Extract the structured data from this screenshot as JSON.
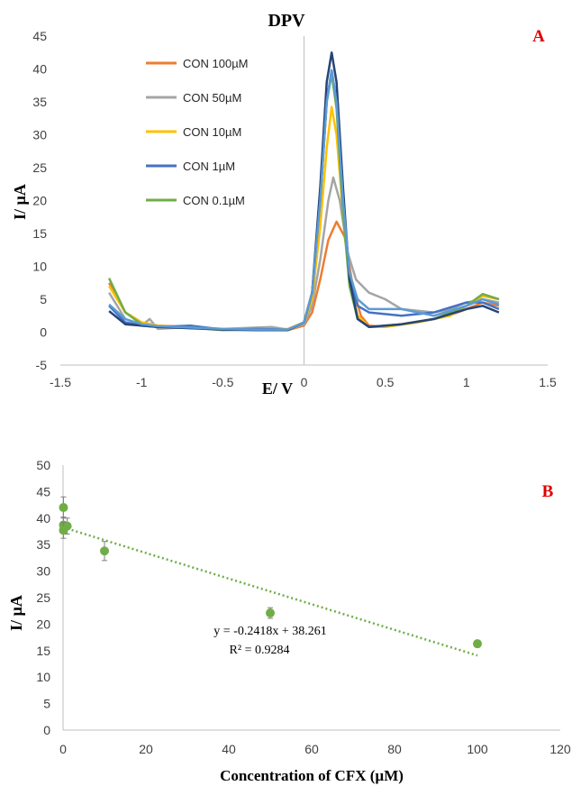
{
  "chart_data": [
    {
      "type": "line",
      "title": "DPV",
      "panel_label": "A",
      "xlabel": "E/ V",
      "ylabel": "I/ µA",
      "xlim": [
        -1.5,
        1.5
      ],
      "ylim": [
        -5,
        45
      ],
      "x_ticks": [
        "-1.5",
        "-1",
        "-0.5",
        "0",
        "0.5",
        "1",
        "1.5"
      ],
      "y_ticks": [
        "-5",
        "0",
        "5",
        "10",
        "15",
        "20",
        "25",
        "30",
        "35",
        "40",
        "45"
      ],
      "grid": false,
      "legend_position": "top-left",
      "series": [
        {
          "name": "CON 100µM",
          "color": "#ED7D31",
          "points": [
            [
              -1.2,
              7.5
            ],
            [
              -1.1,
              3.0
            ],
            [
              -1.0,
              1.5
            ],
            [
              -0.9,
              1.0
            ],
            [
              -0.7,
              0.8
            ],
            [
              -0.5,
              0.4
            ],
            [
              -0.3,
              0.5
            ],
            [
              -0.1,
              0.3
            ],
            [
              0.0,
              1.0
            ],
            [
              0.05,
              3.0
            ],
            [
              0.1,
              8.0
            ],
            [
              0.15,
              14.0
            ],
            [
              0.2,
              16.8
            ],
            [
              0.25,
              14.5
            ],
            [
              0.3,
              7.0
            ],
            [
              0.35,
              2.5
            ],
            [
              0.4,
              1.0
            ],
            [
              0.5,
              0.8
            ],
            [
              0.6,
              1.2
            ],
            [
              0.8,
              2.0
            ],
            [
              0.9,
              2.6
            ],
            [
              1.0,
              3.5
            ],
            [
              1.1,
              4.5
            ],
            [
              1.2,
              4.0
            ]
          ]
        },
        {
          "name": "CON 50µM",
          "color": "#A5A5A5",
          "points": [
            [
              -1.2,
              6.0
            ],
            [
              -1.1,
              2.0
            ],
            [
              -1.0,
              1.0
            ],
            [
              -0.95,
              2.0
            ],
            [
              -0.9,
              0.5
            ],
            [
              -0.7,
              0.8
            ],
            [
              -0.5,
              0.5
            ],
            [
              -0.2,
              0.8
            ],
            [
              -0.1,
              0.4
            ],
            [
              0.0,
              1.2
            ],
            [
              0.05,
              4.0
            ],
            [
              0.1,
              11.0
            ],
            [
              0.15,
              20.0
            ],
            [
              0.18,
              23.5
            ],
            [
              0.22,
              20.0
            ],
            [
              0.27,
              12.0
            ],
            [
              0.32,
              8.0
            ],
            [
              0.4,
              6.0
            ],
            [
              0.5,
              5.0
            ],
            [
              0.6,
              3.5
            ],
            [
              0.8,
              3.0
            ],
            [
              0.9,
              3.5
            ],
            [
              1.0,
              4.5
            ],
            [
              1.1,
              5.0
            ],
            [
              1.2,
              4.5
            ]
          ]
        },
        {
          "name": "CON 10µM",
          "color": "#FFC000",
          "points": [
            [
              -1.2,
              7.0
            ],
            [
              -1.1,
              3.0
            ],
            [
              -1.0,
              1.5
            ],
            [
              -0.9,
              1.0
            ],
            [
              -0.7,
              0.6
            ],
            [
              -0.5,
              0.5
            ],
            [
              -0.3,
              0.3
            ],
            [
              -0.1,
              0.5
            ],
            [
              0.0,
              1.5
            ],
            [
              0.05,
              5.0
            ],
            [
              0.1,
              16.0
            ],
            [
              0.14,
              28.0
            ],
            [
              0.17,
              34.2
            ],
            [
              0.2,
              30.0
            ],
            [
              0.24,
              18.0
            ],
            [
              0.28,
              8.0
            ],
            [
              0.33,
              2.5
            ],
            [
              0.4,
              0.8
            ],
            [
              0.5,
              0.8
            ],
            [
              0.7,
              1.5
            ],
            [
              0.9,
              2.5
            ],
            [
              1.0,
              4.0
            ],
            [
              1.1,
              5.5
            ],
            [
              1.2,
              5.0
            ]
          ]
        },
        {
          "name": "CON 1µM",
          "color": "#4472C4",
          "points": [
            [
              -1.2,
              4.0
            ],
            [
              -1.1,
              1.5
            ],
            [
              -1.0,
              1.0
            ],
            [
              -0.9,
              0.8
            ],
            [
              -0.7,
              1.0
            ],
            [
              -0.5,
              0.4
            ],
            [
              -0.3,
              0.5
            ],
            [
              -0.1,
              0.4
            ],
            [
              0.0,
              1.5
            ],
            [
              0.05,
              6.0
            ],
            [
              0.1,
              20.0
            ],
            [
              0.14,
              35.0
            ],
            [
              0.17,
              39.8
            ],
            [
              0.2,
              35.0
            ],
            [
              0.24,
              20.0
            ],
            [
              0.28,
              8.0
            ],
            [
              0.33,
              4.0
            ],
            [
              0.4,
              3.0
            ],
            [
              0.6,
              2.5
            ],
            [
              0.8,
              3.0
            ],
            [
              1.0,
              4.5
            ],
            [
              1.1,
              4.5
            ],
            [
              1.2,
              3.5
            ]
          ]
        },
        {
          "name": "CON 0.1µM",
          "color": "#70AD47",
          "points": [
            [
              -1.2,
              8.2
            ],
            [
              -1.1,
              3.0
            ],
            [
              -1.0,
              1.2
            ],
            [
              -0.9,
              0.8
            ],
            [
              -0.7,
              0.7
            ],
            [
              -0.5,
              0.3
            ],
            [
              -0.3,
              0.4
            ],
            [
              -0.1,
              0.3
            ],
            [
              0.0,
              1.5
            ],
            [
              0.05,
              6.0
            ],
            [
              0.1,
              20.0
            ],
            [
              0.14,
              35.0
            ],
            [
              0.17,
              39.2
            ],
            [
              0.2,
              34.0
            ],
            [
              0.24,
              18.0
            ],
            [
              0.28,
              7.0
            ],
            [
              0.33,
              2.0
            ],
            [
              0.4,
              0.8
            ],
            [
              0.6,
              1.2
            ],
            [
              0.8,
              2.0
            ],
            [
              1.0,
              4.0
            ],
            [
              1.1,
              5.8
            ],
            [
              1.2,
              5.0
            ]
          ]
        },
        {
          "name": "",
          "color": "#264478",
          "points": [
            [
              -1.2,
              3.2
            ],
            [
              -1.1,
              1.2
            ],
            [
              -0.9,
              0.8
            ],
            [
              -0.7,
              0.6
            ],
            [
              -0.5,
              0.4
            ],
            [
              -0.3,
              0.3
            ],
            [
              -0.1,
              0.3
            ],
            [
              0.0,
              1.5
            ],
            [
              0.05,
              6.0
            ],
            [
              0.1,
              22.0
            ],
            [
              0.14,
              38.0
            ],
            [
              0.17,
              42.5
            ],
            [
              0.2,
              38.0
            ],
            [
              0.24,
              22.0
            ],
            [
              0.28,
              8.0
            ],
            [
              0.33,
              2.0
            ],
            [
              0.4,
              0.8
            ],
            [
              0.6,
              1.2
            ],
            [
              0.8,
              2.0
            ],
            [
              1.0,
              3.5
            ],
            [
              1.1,
              4.0
            ],
            [
              1.2,
              3.0
            ]
          ]
        },
        {
          "name": "",
          "color": "#5B9BD5",
          "points": [
            [
              -1.2,
              4.2
            ],
            [
              -1.1,
              2.0
            ],
            [
              -1.0,
              1.2
            ],
            [
              -0.9,
              0.9
            ],
            [
              -0.7,
              0.7
            ],
            [
              -0.5,
              0.5
            ],
            [
              -0.3,
              0.4
            ],
            [
              -0.1,
              0.4
            ],
            [
              0.0,
              1.5
            ],
            [
              0.05,
              6.0
            ],
            [
              0.1,
              20.0
            ],
            [
              0.14,
              35.0
            ],
            [
              0.17,
              39.8
            ],
            [
              0.2,
              35.0
            ],
            [
              0.24,
              20.0
            ],
            [
              0.28,
              9.0
            ],
            [
              0.33,
              5.0
            ],
            [
              0.4,
              3.5
            ],
            [
              0.6,
              3.5
            ],
            [
              0.8,
              2.5
            ],
            [
              1.0,
              4.0
            ],
            [
              1.1,
              5.0
            ],
            [
              1.2,
              4.2
            ]
          ]
        }
      ]
    },
    {
      "type": "scatter",
      "panel_label": "B",
      "xlabel": "Concentration of CFX (µM)",
      "ylabel": "I/ µA",
      "xlim": [
        0,
        120
      ],
      "ylim": [
        0,
        50
      ],
      "x_ticks": [
        "0",
        "20",
        "40",
        "60",
        "80",
        "100",
        "120"
      ],
      "y_ticks": [
        "0",
        "5",
        "10",
        "15",
        "20",
        "25",
        "30",
        "35",
        "40",
        "45",
        "50"
      ],
      "grid": false,
      "point_color": "#70AD47",
      "points": [
        {
          "x": 0.1,
          "y": 42.0,
          "err": 2.0
        },
        {
          "x": 0.1,
          "y": 38.7,
          "err": 1.5
        },
        {
          "x": 1.0,
          "y": 38.5,
          "err": 1.5
        },
        {
          "x": 0.1,
          "y": 37.7,
          "err": 1.5
        },
        {
          "x": 10,
          "y": 33.8,
          "err": 1.8
        },
        {
          "x": 50,
          "y": 22.1,
          "err": 1.0
        },
        {
          "x": 100,
          "y": 16.3,
          "err": 0.6
        }
      ],
      "trendline": {
        "slope": -0.2418,
        "intercept": 38.261,
        "x_range": [
          0,
          100
        ],
        "color": "#70AD47"
      },
      "equation": "y = -0.2418x + 38.261",
      "r_squared": "R² = 0.9284"
    }
  ]
}
